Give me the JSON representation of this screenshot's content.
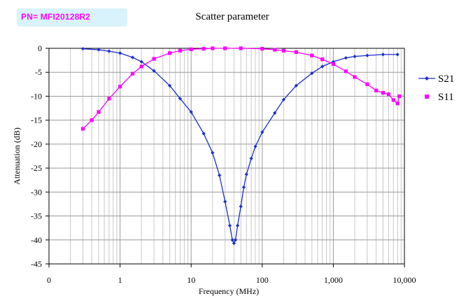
{
  "part_number": "PN= MFI20128R2",
  "chart_data": {
    "type": "line",
    "title": "Scatter parameter",
    "xlabel": "Frequency (MHz)",
    "ylabel": "Attenuation (dB)",
    "xscale": "log",
    "xlim": [
      0.1,
      10000
    ],
    "ylim": [
      -45,
      0
    ],
    "x_tick_labels": [
      "0",
      "1",
      "10",
      "100",
      "1,000",
      "10,000"
    ],
    "y_ticks": [
      0,
      -5,
      -10,
      -15,
      -20,
      -25,
      -30,
      -35,
      -40,
      -45
    ],
    "grid": true,
    "legend_position": "right",
    "series": [
      {
        "name": "S21",
        "color": "#1a2fc9",
        "marker": "diamond",
        "x": [
          0.3,
          0.5,
          0.7,
          1,
          1.5,
          2,
          3,
          5,
          7,
          10,
          15,
          20,
          25,
          30,
          35,
          38,
          40,
          42,
          45,
          50,
          55,
          60,
          70,
          80,
          100,
          150,
          200,
          300,
          500,
          700,
          1000,
          1500,
          2000,
          3000,
          5000,
          8000
        ],
        "y": [
          -0.1,
          -0.3,
          -0.6,
          -1.0,
          -1.9,
          -2.8,
          -4.7,
          -7.8,
          -10.5,
          -13.3,
          -17.8,
          -21.8,
          -26.5,
          -32.0,
          -37.0,
          -40.0,
          -40.7,
          -40.0,
          -37.0,
          -33.0,
          -29.0,
          -26.3,
          -23.0,
          -20.5,
          -17.5,
          -13.5,
          -10.7,
          -7.8,
          -5.2,
          -3.8,
          -2.8,
          -2.0,
          -1.7,
          -1.5,
          -1.3,
          -1.3
        ]
      },
      {
        "name": "S11",
        "color": "#ff00ff",
        "marker": "square",
        "x": [
          0.3,
          0.4,
          0.5,
          0.7,
          1,
          1.5,
          2,
          3,
          5,
          7,
          10,
          15,
          20,
          30,
          50,
          100,
          150,
          200,
          300,
          500,
          700,
          1000,
          1500,
          2000,
          3000,
          4000,
          5000,
          6000,
          7000,
          8000,
          8500
        ],
        "y": [
          -16.8,
          -15.0,
          -13.3,
          -10.5,
          -8.0,
          -5.3,
          -3.8,
          -2.2,
          -1.0,
          -0.5,
          -0.2,
          -0.1,
          0.0,
          0.0,
          0.0,
          -0.1,
          -0.3,
          -0.5,
          -0.8,
          -1.5,
          -2.3,
          -3.3,
          -4.8,
          -6.0,
          -7.5,
          -8.8,
          -9.3,
          -9.6,
          -10.8,
          -11.5,
          -10.0
        ]
      }
    ]
  }
}
